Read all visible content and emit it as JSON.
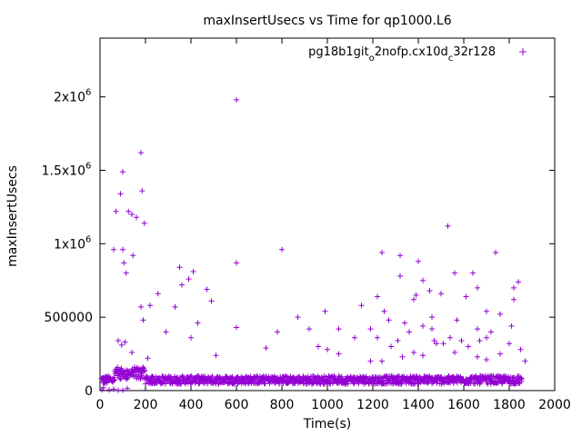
{
  "chart_data": {
    "type": "scatter",
    "title": "maxInsertUsecs vs Time for qp1000.L6",
    "xlabel": "Time(s)",
    "ylabel": "maxInsertUsecs",
    "xlim": [
      0,
      2000
    ],
    "ylim": [
      0,
      2400000
    ],
    "x_ticks": [
      {
        "value": 0,
        "label": "0"
      },
      {
        "value": 200,
        "label": "200"
      },
      {
        "value": 400,
        "label": "400"
      },
      {
        "value": 600,
        "label": "600"
      },
      {
        "value": 800,
        "label": "800"
      },
      {
        "value": 1000,
        "label": "1000"
      },
      {
        "value": 1200,
        "label": "1200"
      },
      {
        "value": 1400,
        "label": "1400"
      },
      {
        "value": 1600,
        "label": "1600"
      },
      {
        "value": 1800,
        "label": "1800"
      },
      {
        "value": 2000,
        "label": "2000"
      }
    ],
    "y_ticks": [
      {
        "value": 0,
        "label": "0",
        "sup": ""
      },
      {
        "value": 500000,
        "label": "500000",
        "sup": ""
      },
      {
        "value": 1000000,
        "label": "1x10",
        "sup": "6"
      },
      {
        "value": 1500000,
        "label": "1.5x10",
        "sup": "6"
      },
      {
        "value": 2000000,
        "label": "2x10",
        "sup": "6"
      }
    ],
    "legend_position": "top-right",
    "marker": "+",
    "color": "#9400d3",
    "series": [
      {
        "name": "pg18b1git_o2nofp.cx10d_c32r128",
        "legend_parts": [
          {
            "text": "pg18b1git",
            "sub": false
          },
          {
            "text": "o",
            "sub": true
          },
          {
            "text": "2nofp.cx10d",
            "sub": false
          },
          {
            "text": "c",
            "sub": true
          },
          {
            "text": "32r128",
            "sub": false
          }
        ],
        "outliers": [
          [
            600,
            1980000
          ],
          [
            180,
            1620000
          ],
          [
            100,
            1490000
          ],
          [
            185,
            1360000
          ],
          [
            90,
            1340000
          ],
          [
            70,
            1220000
          ],
          [
            125,
            1220000
          ],
          [
            140,
            1200000
          ],
          [
            160,
            1180000
          ],
          [
            195,
            1140000
          ],
          [
            1530,
            1120000
          ],
          [
            60,
            960000
          ],
          [
            100,
            960000
          ],
          [
            800,
            960000
          ],
          [
            1240,
            940000
          ],
          [
            1740,
            940000
          ],
          [
            145,
            920000
          ],
          [
            1320,
            920000
          ],
          [
            105,
            870000
          ],
          [
            600,
            870000
          ],
          [
            1400,
            880000
          ],
          [
            350,
            840000
          ],
          [
            410,
            810000
          ],
          [
            1560,
            800000
          ],
          [
            1640,
            800000
          ],
          [
            115,
            800000
          ],
          [
            1320,
            780000
          ],
          [
            390,
            760000
          ],
          [
            1420,
            750000
          ],
          [
            360,
            720000
          ],
          [
            1840,
            740000
          ],
          [
            1660,
            700000
          ],
          [
            1820,
            700000
          ],
          [
            470,
            690000
          ],
          [
            1450,
            680000
          ],
          [
            255,
            660000
          ],
          [
            1500,
            660000
          ],
          [
            1390,
            650000
          ],
          [
            1220,
            640000
          ],
          [
            1610,
            640000
          ],
          [
            1820,
            620000
          ],
          [
            490,
            610000
          ],
          [
            1380,
            620000
          ],
          [
            1150,
            580000
          ],
          [
            220,
            580000
          ],
          [
            180,
            570000
          ],
          [
            330,
            570000
          ],
          [
            1250,
            540000
          ],
          [
            990,
            540000
          ],
          [
            1700,
            540000
          ],
          [
            1760,
            520000
          ],
          [
            870,
            500000
          ],
          [
            1460,
            500000
          ],
          [
            1570,
            480000
          ],
          [
            190,
            480000
          ],
          [
            1270,
            480000
          ],
          [
            1340,
            460000
          ],
          [
            1810,
            440000
          ],
          [
            430,
            460000
          ],
          [
            600,
            430000
          ],
          [
            1050,
            420000
          ],
          [
            920,
            420000
          ],
          [
            1190,
            420000
          ],
          [
            1420,
            440000
          ],
          [
            1460,
            420000
          ],
          [
            1660,
            420000
          ],
          [
            290,
            400000
          ],
          [
            1360,
            400000
          ],
          [
            1720,
            400000
          ],
          [
            780,
            400000
          ],
          [
            1220,
            360000
          ],
          [
            1540,
            360000
          ],
          [
            1120,
            360000
          ],
          [
            1310,
            340000
          ],
          [
            1470,
            340000
          ],
          [
            1590,
            340000
          ],
          [
            1670,
            340000
          ],
          [
            80,
            340000
          ],
          [
            110,
            330000
          ],
          [
            400,
            360000
          ],
          [
            960,
            300000
          ],
          [
            1000,
            280000
          ],
          [
            1280,
            300000
          ],
          [
            1480,
            320000
          ],
          [
            1620,
            300000
          ],
          [
            1800,
            320000
          ],
          [
            730,
            290000
          ],
          [
            95,
            310000
          ],
          [
            1380,
            260000
          ],
          [
            1850,
            280000
          ],
          [
            1050,
            250000
          ],
          [
            1560,
            260000
          ],
          [
            1760,
            250000
          ],
          [
            510,
            240000
          ],
          [
            1420,
            240000
          ],
          [
            140,
            260000
          ],
          [
            210,
            220000
          ],
          [
            1330,
            230000
          ],
          [
            1660,
            230000
          ],
          [
            1190,
            200000
          ],
          [
            1240,
            200000
          ],
          [
            1700,
            210000
          ],
          [
            1870,
            200000
          ],
          [
            1700,
            360000
          ],
          [
            1510,
            320000
          ]
        ]
      }
    ]
  }
}
